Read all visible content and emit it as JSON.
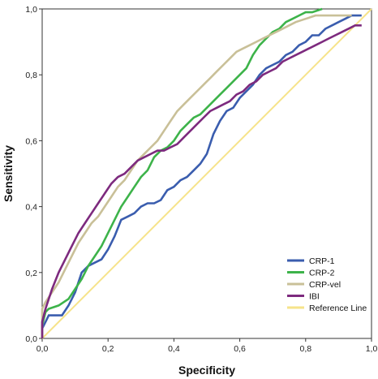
{
  "chart_data": {
    "type": "line",
    "xlabel": "Specificity",
    "ylabel": "Sensitivity",
    "xlim": [
      0,
      1
    ],
    "ylim": [
      0,
      1
    ],
    "xticks": [
      "0,0",
      "0,2",
      "0,4",
      "0,6",
      "0,8",
      "1,0"
    ],
    "yticks": [
      "0,0",
      "0,2",
      "0,4",
      "0,6",
      "0,8",
      "1,0"
    ],
    "grid": false,
    "legend_position": "bottom-right",
    "series": [
      {
        "name": "CRP-1",
        "color": "#3A5DAE",
        "points": [
          [
            0.0,
            0.0
          ],
          [
            0.0,
            0.03
          ],
          [
            0.01,
            0.05
          ],
          [
            0.02,
            0.07
          ],
          [
            0.06,
            0.07
          ],
          [
            0.08,
            0.1
          ],
          [
            0.1,
            0.14
          ],
          [
            0.12,
            0.2
          ],
          [
            0.14,
            0.22
          ],
          [
            0.16,
            0.23
          ],
          [
            0.18,
            0.24
          ],
          [
            0.2,
            0.27
          ],
          [
            0.22,
            0.31
          ],
          [
            0.24,
            0.36
          ],
          [
            0.26,
            0.37
          ],
          [
            0.28,
            0.38
          ],
          [
            0.3,
            0.4
          ],
          [
            0.32,
            0.41
          ],
          [
            0.34,
            0.41
          ],
          [
            0.36,
            0.42
          ],
          [
            0.38,
            0.45
          ],
          [
            0.4,
            0.46
          ],
          [
            0.42,
            0.48
          ],
          [
            0.44,
            0.49
          ],
          [
            0.46,
            0.51
          ],
          [
            0.48,
            0.53
          ],
          [
            0.5,
            0.56
          ],
          [
            0.52,
            0.62
          ],
          [
            0.54,
            0.66
          ],
          [
            0.56,
            0.69
          ],
          [
            0.58,
            0.7
          ],
          [
            0.6,
            0.73
          ],
          [
            0.62,
            0.75
          ],
          [
            0.64,
            0.77
          ],
          [
            0.66,
            0.8
          ],
          [
            0.68,
            0.82
          ],
          [
            0.7,
            0.83
          ],
          [
            0.72,
            0.84
          ],
          [
            0.74,
            0.86
          ],
          [
            0.76,
            0.87
          ],
          [
            0.78,
            0.89
          ],
          [
            0.8,
            0.9
          ],
          [
            0.82,
            0.92
          ],
          [
            0.84,
            0.92
          ],
          [
            0.86,
            0.94
          ],
          [
            0.88,
            0.95
          ],
          [
            0.9,
            0.96
          ],
          [
            0.92,
            0.97
          ],
          [
            0.94,
            0.98
          ],
          [
            0.96,
            0.98
          ],
          [
            0.97,
            0.98
          ]
        ]
      },
      {
        "name": "CRP-2",
        "color": "#3DB34A",
        "points": [
          [
            0.0,
            0.0
          ],
          [
            0.0,
            0.04
          ],
          [
            0.01,
            0.08
          ],
          [
            0.02,
            0.09
          ],
          [
            0.05,
            0.1
          ],
          [
            0.08,
            0.12
          ],
          [
            0.1,
            0.15
          ],
          [
            0.12,
            0.18
          ],
          [
            0.14,
            0.22
          ],
          [
            0.16,
            0.25
          ],
          [
            0.18,
            0.28
          ],
          [
            0.2,
            0.32
          ],
          [
            0.22,
            0.36
          ],
          [
            0.24,
            0.4
          ],
          [
            0.26,
            0.43
          ],
          [
            0.28,
            0.46
          ],
          [
            0.3,
            0.49
          ],
          [
            0.32,
            0.51
          ],
          [
            0.34,
            0.55
          ],
          [
            0.36,
            0.57
          ],
          [
            0.38,
            0.58
          ],
          [
            0.4,
            0.6
          ],
          [
            0.42,
            0.63
          ],
          [
            0.44,
            0.65
          ],
          [
            0.46,
            0.67
          ],
          [
            0.48,
            0.68
          ],
          [
            0.5,
            0.7
          ],
          [
            0.52,
            0.72
          ],
          [
            0.54,
            0.74
          ],
          [
            0.56,
            0.76
          ],
          [
            0.58,
            0.78
          ],
          [
            0.6,
            0.8
          ],
          [
            0.62,
            0.82
          ],
          [
            0.64,
            0.86
          ],
          [
            0.66,
            0.89
          ],
          [
            0.68,
            0.91
          ],
          [
            0.7,
            0.93
          ],
          [
            0.72,
            0.94
          ],
          [
            0.74,
            0.96
          ],
          [
            0.76,
            0.97
          ],
          [
            0.78,
            0.98
          ],
          [
            0.8,
            0.99
          ],
          [
            0.82,
            0.99
          ],
          [
            0.85,
            1.0
          ]
        ]
      },
      {
        "name": "CRP-vel",
        "color": "#C9C098",
        "points": [
          [
            0.0,
            0.0
          ],
          [
            0.0,
            0.09
          ],
          [
            0.01,
            0.11
          ],
          [
            0.03,
            0.14
          ],
          [
            0.05,
            0.17
          ],
          [
            0.07,
            0.21
          ],
          [
            0.09,
            0.25
          ],
          [
            0.11,
            0.29
          ],
          [
            0.13,
            0.32
          ],
          [
            0.15,
            0.35
          ],
          [
            0.17,
            0.37
          ],
          [
            0.19,
            0.4
          ],
          [
            0.21,
            0.43
          ],
          [
            0.23,
            0.46
          ],
          [
            0.25,
            0.48
          ],
          [
            0.27,
            0.51
          ],
          [
            0.29,
            0.54
          ],
          [
            0.31,
            0.56
          ],
          [
            0.33,
            0.58
          ],
          [
            0.35,
            0.6
          ],
          [
            0.37,
            0.63
          ],
          [
            0.39,
            0.66
          ],
          [
            0.41,
            0.69
          ],
          [
            0.43,
            0.71
          ],
          [
            0.45,
            0.73
          ],
          [
            0.47,
            0.75
          ],
          [
            0.49,
            0.77
          ],
          [
            0.51,
            0.79
          ],
          [
            0.53,
            0.81
          ],
          [
            0.55,
            0.83
          ],
          [
            0.57,
            0.85
          ],
          [
            0.59,
            0.87
          ],
          [
            0.61,
            0.88
          ],
          [
            0.63,
            0.89
          ],
          [
            0.65,
            0.9
          ],
          [
            0.67,
            0.91
          ],
          [
            0.69,
            0.92
          ],
          [
            0.71,
            0.93
          ],
          [
            0.73,
            0.94
          ],
          [
            0.75,
            0.95
          ],
          [
            0.77,
            0.96
          ],
          [
            0.8,
            0.97
          ],
          [
            0.83,
            0.98
          ],
          [
            0.86,
            0.98
          ],
          [
            0.9,
            0.98
          ],
          [
            0.94,
            0.98
          ]
        ]
      },
      {
        "name": "IBI",
        "color": "#7D2A7E",
        "points": [
          [
            0.0,
            0.0
          ],
          [
            0.0,
            0.05
          ],
          [
            0.01,
            0.09
          ],
          [
            0.03,
            0.15
          ],
          [
            0.05,
            0.2
          ],
          [
            0.07,
            0.24
          ],
          [
            0.09,
            0.28
          ],
          [
            0.11,
            0.32
          ],
          [
            0.13,
            0.35
          ],
          [
            0.15,
            0.38
          ],
          [
            0.17,
            0.41
          ],
          [
            0.19,
            0.44
          ],
          [
            0.21,
            0.47
          ],
          [
            0.23,
            0.49
          ],
          [
            0.25,
            0.5
          ],
          [
            0.27,
            0.52
          ],
          [
            0.29,
            0.54
          ],
          [
            0.31,
            0.55
          ],
          [
            0.33,
            0.56
          ],
          [
            0.35,
            0.57
          ],
          [
            0.37,
            0.57
          ],
          [
            0.39,
            0.58
          ],
          [
            0.41,
            0.59
          ],
          [
            0.43,
            0.61
          ],
          [
            0.45,
            0.63
          ],
          [
            0.47,
            0.65
          ],
          [
            0.49,
            0.67
          ],
          [
            0.51,
            0.69
          ],
          [
            0.53,
            0.7
          ],
          [
            0.55,
            0.71
          ],
          [
            0.57,
            0.72
          ],
          [
            0.59,
            0.74
          ],
          [
            0.61,
            0.75
          ],
          [
            0.63,
            0.77
          ],
          [
            0.65,
            0.78
          ],
          [
            0.67,
            0.8
          ],
          [
            0.69,
            0.81
          ],
          [
            0.71,
            0.82
          ],
          [
            0.73,
            0.84
          ],
          [
            0.75,
            0.85
          ],
          [
            0.77,
            0.86
          ],
          [
            0.79,
            0.87
          ],
          [
            0.81,
            0.88
          ],
          [
            0.83,
            0.89
          ],
          [
            0.85,
            0.9
          ],
          [
            0.87,
            0.91
          ],
          [
            0.89,
            0.92
          ],
          [
            0.91,
            0.93
          ],
          [
            0.93,
            0.94
          ],
          [
            0.95,
            0.95
          ],
          [
            0.97,
            0.95
          ]
        ]
      },
      {
        "name": "Reference Line",
        "color": "#F6E38A",
        "points": [
          [
            0.0,
            0.0
          ],
          [
            1.0,
            1.0
          ]
        ]
      }
    ]
  }
}
